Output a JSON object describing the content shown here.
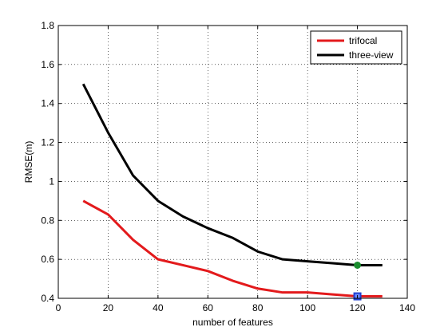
{
  "chart_data": {
    "type": "line",
    "xlabel": "number of features",
    "ylabel": "RMSE(m)",
    "xlim": [
      0,
      140
    ],
    "ylim": [
      0.4,
      1.8
    ],
    "xticks": [
      "0",
      "20",
      "40",
      "60",
      "80",
      "100",
      "120",
      "140"
    ],
    "yticks": [
      "0.4",
      "0.6",
      "0.8",
      "1",
      "1.2",
      "1.4",
      "1.6",
      "1.8"
    ],
    "grid": true,
    "legend_position": "top-right",
    "series": [
      {
        "name": "trifocal",
        "color": "#e31a1c",
        "x": [
          10,
          20,
          30,
          40,
          50,
          60,
          70,
          80,
          90,
          100,
          110,
          120,
          130
        ],
        "y": [
          0.9,
          0.83,
          0.7,
          0.6,
          0.57,
          0.54,
          0.49,
          0.45,
          0.43,
          0.43,
          0.42,
          0.41,
          0.41
        ],
        "marker": {
          "x": 120,
          "y": 0.41,
          "shape": "square",
          "color": "#1f3fd1"
        }
      },
      {
        "name": "three-view",
        "color": "#000000",
        "x": [
          10,
          20,
          30,
          40,
          50,
          60,
          70,
          80,
          90,
          100,
          110,
          120,
          130
        ],
        "y": [
          1.5,
          1.25,
          1.03,
          0.9,
          0.82,
          0.76,
          0.71,
          0.64,
          0.6,
          0.59,
          0.58,
          0.57,
          0.57
        ],
        "marker": {
          "x": 120,
          "y": 0.57,
          "shape": "circle",
          "color": "#1a8c2e"
        }
      }
    ]
  }
}
